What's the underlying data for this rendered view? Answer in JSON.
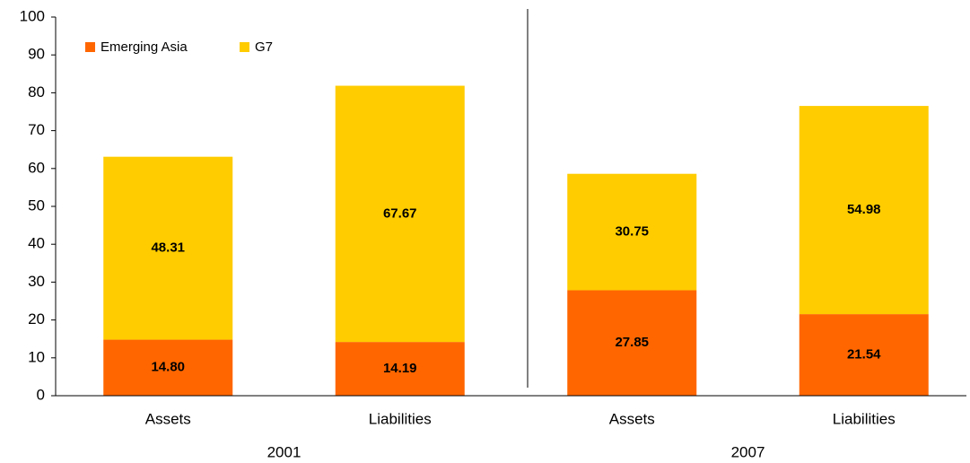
{
  "chart_data": {
    "type": "stacked_bar",
    "categories": [
      "Assets",
      "Liabilities",
      "Assets",
      "Liabilities"
    ],
    "groups": [
      "2001",
      "2007"
    ],
    "series": [
      {
        "name": "Emerging Asia",
        "color": "#ff6600",
        "values": [
          14.8,
          14.19,
          27.85,
          21.54
        ],
        "value_labels": [
          "14.80",
          "14.19",
          "27.85",
          "21.54"
        ]
      },
      {
        "name": "G7",
        "color": "#ffcc00",
        "values": [
          48.31,
          67.67,
          30.75,
          54.98
        ],
        "value_labels": [
          "48.31",
          "67.67",
          "30.75",
          "54.98"
        ]
      }
    ],
    "ylim": [
      0,
      100
    ],
    "yticks": [
      0,
      10,
      20,
      30,
      40,
      50,
      60,
      70,
      80,
      90,
      100
    ],
    "grid": false
  }
}
